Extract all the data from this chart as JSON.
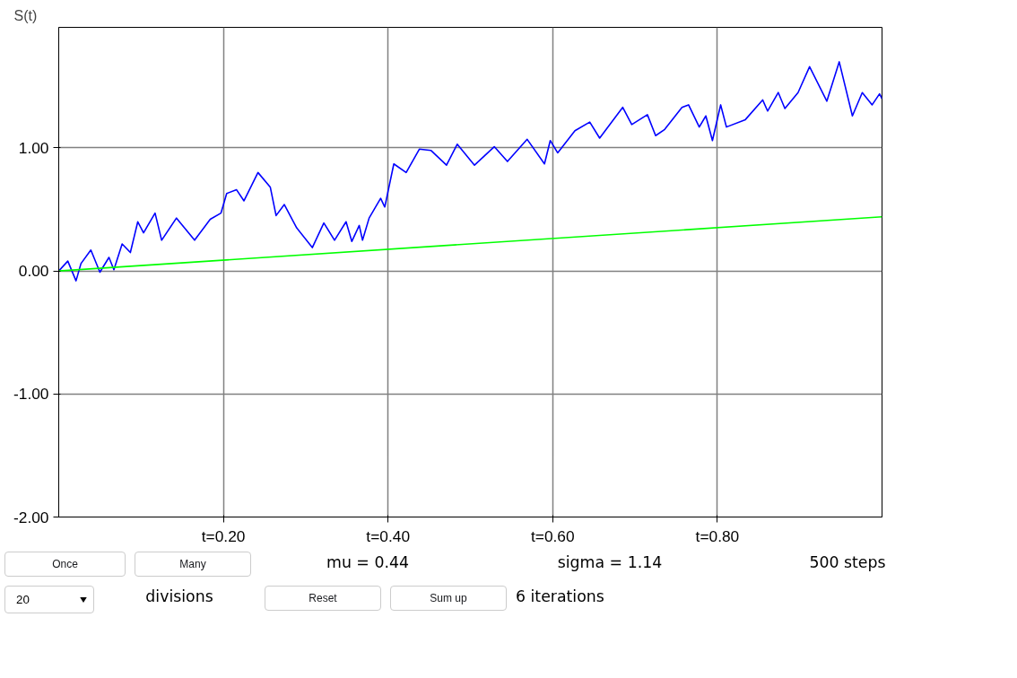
{
  "chart_data": {
    "type": "line",
    "ylabel": "S(t)",
    "xlim": [
      0,
      1
    ],
    "ylim": [
      -2,
      1.98
    ],
    "xticks": [
      {
        "value": 0.2,
        "label": "t=0.20"
      },
      {
        "value": 0.4,
        "label": "t=0.40"
      },
      {
        "value": 0.6,
        "label": "t=0.60"
      },
      {
        "value": 0.8,
        "label": "t=0.80"
      }
    ],
    "yticks": [
      {
        "value": -2,
        "label": "-2.00"
      },
      {
        "value": -1,
        "label": "-1.00"
      },
      {
        "value": 0,
        "label": "0.00"
      },
      {
        "value": 1,
        "label": "1.00"
      }
    ],
    "grid": true,
    "marker": "none",
    "line_style": "solid",
    "series": [
      {
        "color": "#0000ff",
        "x": [
          0,
          0.011,
          0.021,
          0.027,
          0.039,
          0.05,
          0.061,
          0.067,
          0.077,
          0.087,
          0.096,
          0.103,
          0.117,
          0.125,
          0.143,
          0.165,
          0.184,
          0.197,
          0.204,
          0.216,
          0.225,
          0.242,
          0.257,
          0.264,
          0.274,
          0.289,
          0.308,
          0.322,
          0.335,
          0.349,
          0.356,
          0.365,
          0.369,
          0.377,
          0.391,
          0.396,
          0.407,
          0.422,
          0.438,
          0.452,
          0.471,
          0.484,
          0.505,
          0.529,
          0.545,
          0.569,
          0.59,
          0.597,
          0.606,
          0.627,
          0.645,
          0.657,
          0.685,
          0.696,
          0.715,
          0.725,
          0.736,
          0.757,
          0.765,
          0.778,
          0.786,
          0.794,
          0.804,
          0.811,
          0.834,
          0.855,
          0.861,
          0.874,
          0.882,
          0.898,
          0.912,
          0.933,
          0.948,
          0.964,
          0.976,
          0.988,
          0.997,
          1.0
        ],
        "values": [
          0,
          0.08,
          -0.08,
          0.06,
          0.17,
          -0.01,
          0.11,
          0.01,
          0.22,
          0.15,
          0.4,
          0.31,
          0.47,
          0.25,
          0.43,
          0.25,
          0.42,
          0.47,
          0.63,
          0.66,
          0.57,
          0.8,
          0.68,
          0.45,
          0.54,
          0.35,
          0.19,
          0.39,
          0.25,
          0.4,
          0.24,
          0.37,
          0.25,
          0.43,
          0.59,
          0.52,
          0.87,
          0.8,
          0.99,
          0.98,
          0.86,
          1.03,
          0.86,
          1.01,
          0.89,
          1.07,
          0.87,
          1.06,
          0.96,
          1.14,
          1.21,
          1.08,
          1.33,
          1.19,
          1.27,
          1.1,
          1.15,
          1.33,
          1.35,
          1.17,
          1.26,
          1.06,
          1.35,
          1.17,
          1.23,
          1.39,
          1.3,
          1.45,
          1.32,
          1.45,
          1.66,
          1.38,
          1.7,
          1.26,
          1.45,
          1.35,
          1.44,
          1.4
        ]
      },
      {
        "color": "#00ff00",
        "x": [
          0,
          1
        ],
        "values": [
          0,
          0.44
        ]
      }
    ],
    "annotations": [
      "Once",
      "Many",
      "mu = 0.44",
      "sigma = 1.14",
      "500 steps",
      "20",
      "divisions",
      "Reset",
      "Sum up",
      "6 iterations"
    ]
  }
}
